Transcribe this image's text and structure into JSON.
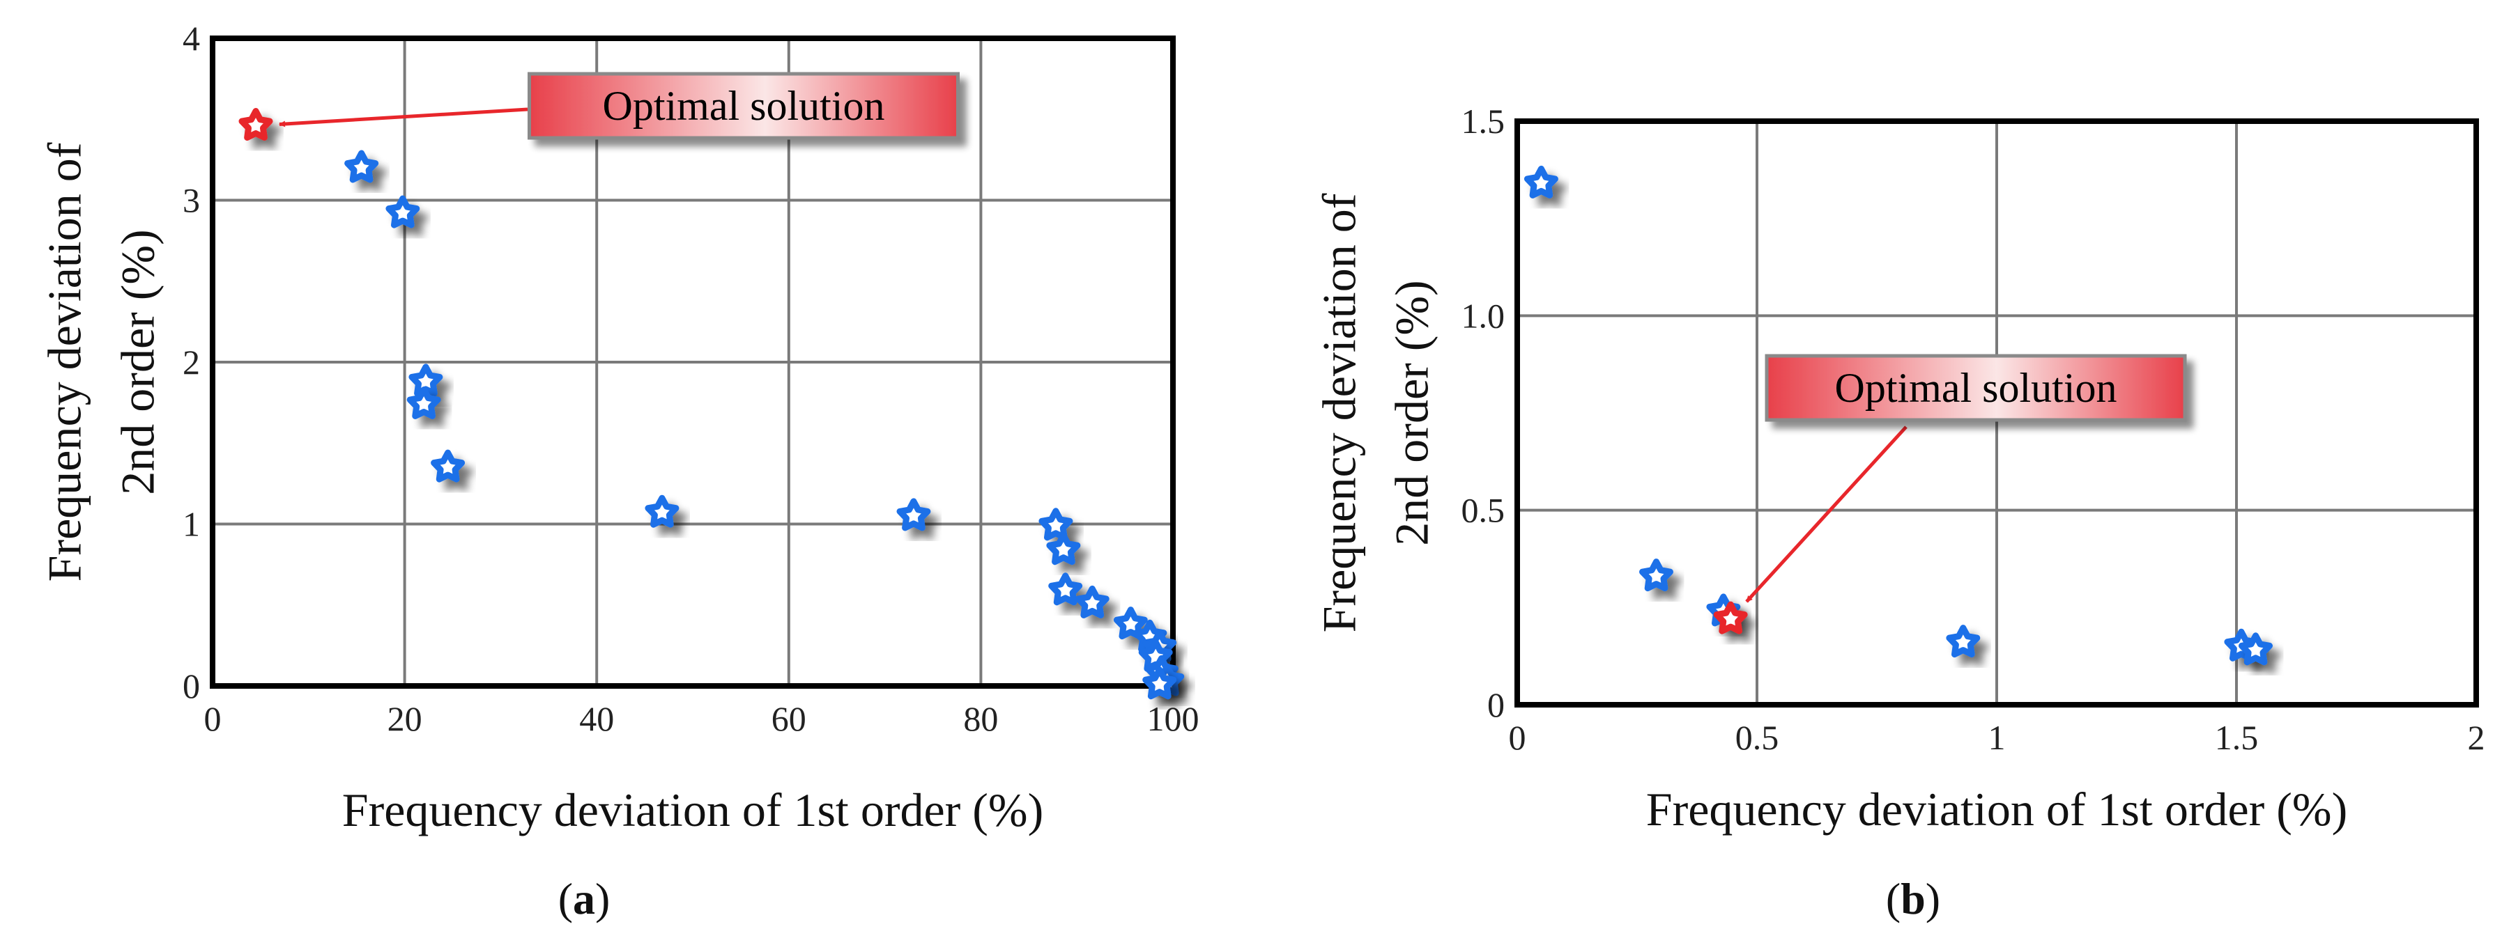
{
  "chart_data": [
    {
      "type": "scatter",
      "panel_label": "a",
      "xlabel": "Frequency deviation of 1st order (%)",
      "ylabel": [
        "Frequency deviation of",
        "2nd order (%)"
      ],
      "xlim": [
        0,
        100
      ],
      "ylim": [
        0,
        4
      ],
      "x_ticks": [
        0,
        20,
        40,
        60,
        80,
        100
      ],
      "y_ticks": [
        0,
        1,
        2,
        3,
        4
      ],
      "x_tick_labels": [
        "0",
        "20",
        "40",
        "60",
        "80",
        "100"
      ],
      "y_tick_labels": [
        "0",
        "1",
        "2",
        "3",
        "4"
      ],
      "grid": true,
      "marker": "star",
      "point_color": "#1a6fe8",
      "optimal_color": "#e8262b",
      "points": [
        {
          "x": 15.5,
          "y": 3.2
        },
        {
          "x": 19.8,
          "y": 2.92
        },
        {
          "x": 22.2,
          "y": 1.88
        },
        {
          "x": 22.0,
          "y": 1.74
        },
        {
          "x": 24.5,
          "y": 1.35
        },
        {
          "x": 46.8,
          "y": 1.07
        },
        {
          "x": 73.0,
          "y": 1.05
        },
        {
          "x": 87.8,
          "y": 0.99
        },
        {
          "x": 88.6,
          "y": 0.84
        },
        {
          "x": 88.8,
          "y": 0.59
        },
        {
          "x": 91.6,
          "y": 0.51
        },
        {
          "x": 95.6,
          "y": 0.38
        },
        {
          "x": 97.6,
          "y": 0.3
        },
        {
          "x": 98.6,
          "y": 0.24
        },
        {
          "x": 98.2,
          "y": 0.18
        },
        {
          "x": 98.8,
          "y": 0.08
        },
        {
          "x": 99.4,
          "y": 0.03
        },
        {
          "x": 98.6,
          "y": 0.01
        }
      ],
      "optimal": {
        "x": 4.5,
        "y": 3.46
      },
      "annotation": {
        "text": "Optimal solution"
      }
    },
    {
      "type": "scatter",
      "panel_label": "b",
      "xlabel": "Frequency deviation of 1st order (%)",
      "ylabel": [
        "Frequency deviation of",
        "2nd order (%)"
      ],
      "xlim": [
        0,
        2
      ],
      "ylim": [
        0,
        1.5
      ],
      "x_ticks": [
        0,
        0.5,
        1,
        1.5,
        2
      ],
      "y_ticks": [
        0,
        0.5,
        1.0,
        1.5
      ],
      "x_tick_labels": [
        "0",
        "0.5",
        "1",
        "1.5",
        "2"
      ],
      "y_tick_labels": [
        "0",
        "0.5",
        "1.0",
        "1.5"
      ],
      "grid": true,
      "marker": "star",
      "point_color": "#1a6fe8",
      "optimal_color": "#e8262b",
      "points": [
        {
          "x": 0.05,
          "y": 1.34
        },
        {
          "x": 0.29,
          "y": 0.33
        },
        {
          "x": 0.43,
          "y": 0.24
        },
        {
          "x": 0.93,
          "y": 0.16
        },
        {
          "x": 1.51,
          "y": 0.15
        },
        {
          "x": 1.54,
          "y": 0.14
        }
      ],
      "optimal": {
        "x": 0.445,
        "y": 0.22
      },
      "annotation": {
        "text": "Optimal solution"
      }
    }
  ]
}
